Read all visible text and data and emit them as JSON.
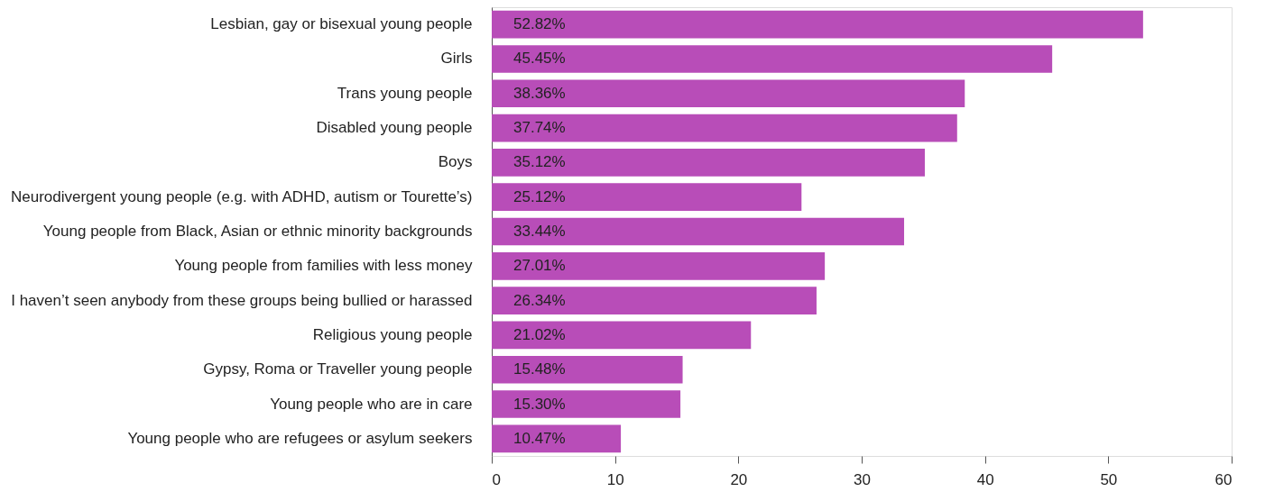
{
  "chart_data": {
    "type": "bar",
    "orientation": "horizontal",
    "categories": [
      "Lesbian, gay or bisexual young people",
      "Girls",
      "Trans young people",
      "Disabled young people",
      "Boys",
      "Neurodivergent young people (e.g. with ADHD, autism or Tourette’s)",
      "Young people from Black, Asian or ethnic minority backgrounds",
      "Young people from families with less money",
      "I haven’t seen anybody from these groups being bullied or harassed",
      "Religious young people",
      "Gypsy, Roma or Traveller young people",
      "Young people who are in care",
      "Young people who are refugees or asylum seekers"
    ],
    "values": [
      52.82,
      45.45,
      38.36,
      37.74,
      35.12,
      25.12,
      33.44,
      27.01,
      26.34,
      21.02,
      15.48,
      15.3,
      10.47
    ],
    "value_labels": [
      "52.82%",
      "45.45%",
      "38.36%",
      "37.74%",
      "35.12%",
      "25.12%",
      "33.44%",
      "27.01%",
      "26.34%",
      "21.02%",
      "15.48%",
      "15.30%",
      "10.47%"
    ],
    "color": "#b84db8",
    "xlim": [
      0,
      60
    ],
    "xticks": [
      0,
      10,
      20,
      30,
      40,
      50,
      60
    ],
    "grid": false
  }
}
